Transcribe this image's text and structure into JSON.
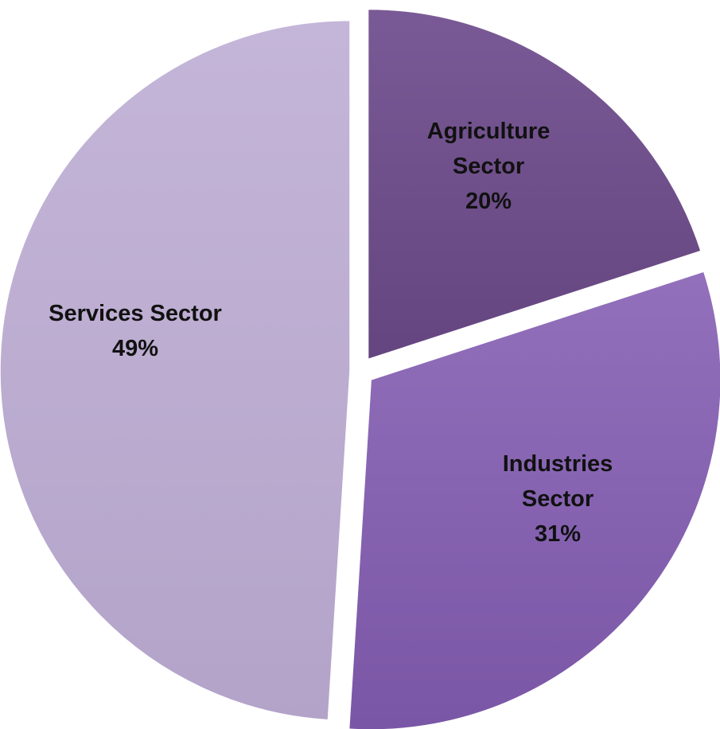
{
  "chart_data": {
    "type": "pie",
    "title": "",
    "slices": [
      {
        "label_lines": [
          "Agriculture",
          "Sector"
        ],
        "percent_label": "20%",
        "value": 20,
        "color": "#64457f",
        "highlight": "#7a5a96"
      },
      {
        "label_lines": [
          "Industries",
          "Sector"
        ],
        "percent_label": "31%",
        "value": 31,
        "color": "#7a56a6",
        "highlight": "#9270bb"
      },
      {
        "label_lines": [
          "Services Sector"
        ],
        "percent_label": "49%",
        "value": 49,
        "color": "#b3a3c9",
        "highlight": "#c4b6d8"
      }
    ],
    "legend": "none",
    "exploded": true
  }
}
